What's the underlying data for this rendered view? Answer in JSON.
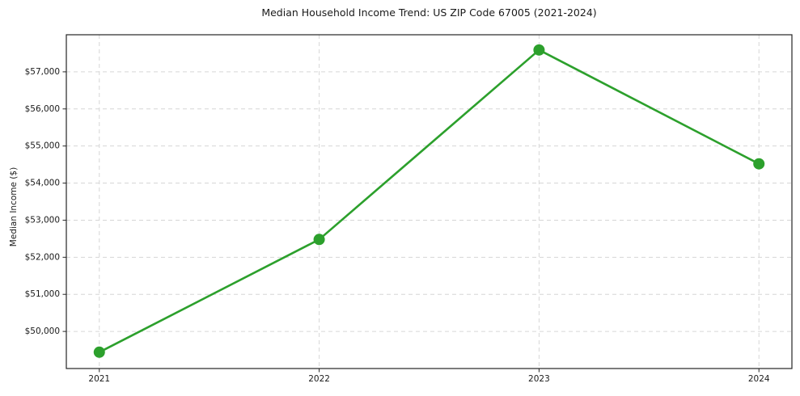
{
  "figure": {
    "background_color": "#ffffff"
  },
  "chart_data": {
    "type": "line",
    "title": "Median Household Income Trend: US ZIP Code 67005 (2021-2024)",
    "xlabel": "",
    "ylabel": "Median Income ($)",
    "x": [
      2021,
      2022,
      2023,
      2024
    ],
    "xtick_labels": [
      "2021",
      "2022",
      "2023",
      "2024"
    ],
    "values": [
      49440,
      52480,
      57590,
      54520
    ],
    "yticks": [
      50000,
      51000,
      52000,
      53000,
      54000,
      55000,
      56000,
      57000
    ],
    "ytick_labels": [
      "$50,000",
      "$51,000",
      "$52,000",
      "$53,000",
      "$54,000",
      "$55,000",
      "$56,000",
      "$57,000"
    ],
    "xlim": [
      2020.85,
      2024.15
    ],
    "ylim": [
      49000,
      58000
    ],
    "grid": true,
    "grid_style": "dashed",
    "legend": "none",
    "line_color": "#2ca02c",
    "marker_color": "#2ca02c",
    "marker_shape": "circle",
    "grid_color": "#d6d6d6",
    "axis_color": "#262626",
    "text_color": "#1a1a1a"
  }
}
